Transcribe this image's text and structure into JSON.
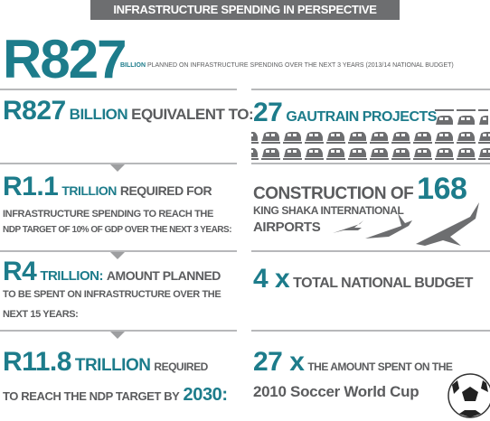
{
  "header": {
    "title": "INFRASTRUCTURE SPENDING IN PERSPECTIVE"
  },
  "hero": {
    "amount": "R827",
    "unit": "BILLION",
    "text": "PLANNED ON INFRASTRUCTURE SPENDING OVER THE NEXT 3 YEARS (2013/14  NATIONAL BUDGET)"
  },
  "left": [
    {
      "amount": "R827",
      "unit": "BILLION",
      "text": "EQUIVALENT TO:"
    },
    {
      "amount": "R1.1",
      "unit": "TRILLION",
      "text": "REQUIRED FOR",
      "lines": [
        "INFRASTRUCTURE SPENDING TO REACH THE",
        "NDP TARGET OF 10% OF GDP OVER THE NEXT 3 YEARS:"
      ]
    },
    {
      "amount": "R4",
      "unit": "TRILLION:",
      "text": "AMOUNT PLANNED",
      "lines": [
        "TO BE SPENT ON INFRASTRUCTURE OVER THE",
        "NEXT 15 YEARS:"
      ]
    },
    {
      "amount": "R11.8",
      "unit": "TRILLION",
      "text": "REQUIRED",
      "lines": [
        "TO REACH THE NDP TARGET BY"
      ],
      "year": "2030:"
    }
  ],
  "right": [
    {
      "amount": "27",
      "text": "GAUTRAIN PROJECTS"
    },
    {
      "text": "CONSTRUCTION OF",
      "amount": "168",
      "lines": [
        "KING SHAKA INTERNATIONAL",
        "AIRPORTS"
      ]
    },
    {
      "amount": "4 x",
      "text": "TOTAL NATIONAL BUDGET"
    },
    {
      "amount": "27 x",
      "text": "THE AMOUNT SPENT ON THE",
      "lines": [
        "2010 Soccer World Cup"
      ]
    }
  ]
}
